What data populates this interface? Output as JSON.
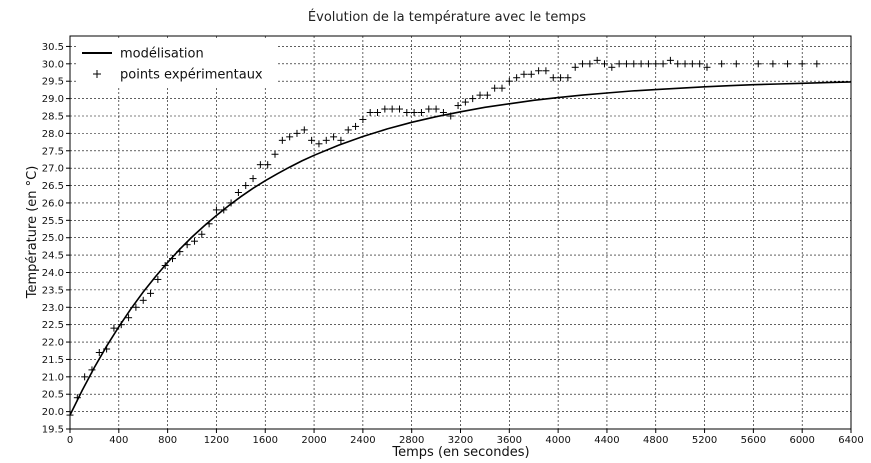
{
  "chart_data": {
    "type": "line",
    "title": "Évolution de la température avec le temps",
    "xlabel": "Temps (en secondes)",
    "ylabel": "Température (en °C)",
    "xlim": [
      0,
      6400
    ],
    "ylim": [
      19.5,
      30.8
    ],
    "xticks": [
      0,
      400,
      800,
      1200,
      1600,
      2000,
      2400,
      2800,
      3200,
      3600,
      4000,
      4400,
      4800,
      5200,
      5600,
      6000,
      6400
    ],
    "xtick_labels": [
      "0",
      "400",
      "800",
      "1200",
      "1600",
      "2000",
      "2400",
      "2800",
      "3200",
      "3600",
      "4000",
      "4400",
      "4800",
      "5200",
      "5600",
      "6000",
      "6400"
    ],
    "yticks": [
      19.5,
      20.0,
      20.5,
      21.0,
      21.5,
      22.0,
      22.5,
      23.0,
      23.5,
      24.0,
      24.5,
      25.0,
      25.5,
      26.0,
      26.5,
      27.0,
      27.5,
      28.0,
      28.5,
      29.0,
      29.5,
      30.0,
      30.5
    ],
    "ytick_labels": [
      "19.5",
      "20.0",
      "20.5",
      "21.0",
      "21.5",
      "22.0",
      "22.5",
      "23.0",
      "23.5",
      "24.0",
      "24.5",
      "25.0",
      "25.5",
      "26.0",
      "26.5",
      "27.0",
      "27.5",
      "28.0",
      "28.5",
      "29.0",
      "29.5",
      "30.0",
      "30.5"
    ],
    "grid": true,
    "grid_style": "dashed",
    "legend_position": "top-left",
    "series": [
      {
        "name": "modélisation",
        "kind": "line",
        "color": "#000000",
        "x": [
          0,
          100,
          200,
          300,
          400,
          500,
          600,
          700,
          800,
          900,
          1000,
          1100,
          1200,
          1300,
          1400,
          1500,
          1600,
          1700,
          1800,
          1900,
          2000,
          2200,
          2400,
          2600,
          2800,
          3000,
          3200,
          3400,
          3600,
          3800,
          4000,
          4200,
          4400,
          4600,
          4800,
          5000,
          5200,
          5400,
          5600,
          5800,
          6000,
          6200,
          6400
        ],
        "values": [
          19.9,
          20.61,
          21.27,
          21.88,
          22.44,
          22.96,
          23.44,
          23.88,
          24.29,
          24.67,
          25.02,
          25.34,
          25.64,
          25.92,
          26.18,
          26.42,
          26.64,
          26.84,
          27.03,
          27.21,
          27.37,
          27.66,
          27.91,
          28.13,
          28.32,
          28.48,
          28.62,
          28.75,
          28.85,
          28.95,
          29.03,
          29.1,
          29.16,
          29.22,
          29.26,
          29.3,
          29.34,
          29.37,
          29.4,
          29.42,
          29.44,
          29.46,
          29.48
        ]
      },
      {
        "name": "points expérimentaux",
        "kind": "scatter",
        "marker": "+",
        "color": "#000000",
        "x": [
          0,
          60,
          120,
          180,
          240,
          300,
          360,
          420,
          480,
          540,
          600,
          660,
          720,
          780,
          840,
          900,
          960,
          1020,
          1080,
          1140,
          1200,
          1260,
          1320,
          1380,
          1440,
          1500,
          1560,
          1620,
          1680,
          1740,
          1800,
          1860,
          1920,
          1980,
          2040,
          2100,
          2160,
          2220,
          2280,
          2340,
          2400,
          2460,
          2520,
          2580,
          2640,
          2700,
          2760,
          2820,
          2880,
          2940,
          3000,
          3060,
          3120,
          3180,
          3240,
          3300,
          3360,
          3420,
          3480,
          3540,
          3600,
          3660,
          3720,
          3780,
          3840,
          3900,
          3960,
          4020,
          4080,
          4140,
          4200,
          4260,
          4320,
          4380,
          4440,
          4500,
          4560,
          4620,
          4680,
          4740,
          4800,
          4860,
          4920,
          4980,
          5040,
          5100,
          5160,
          5220,
          5340,
          5460,
          5640,
          5760,
          5880,
          6000,
          6120
        ],
        "values": [
          19.9,
          20.4,
          21.0,
          21.2,
          21.7,
          21.8,
          22.4,
          22.5,
          22.7,
          23.0,
          23.2,
          23.4,
          23.8,
          24.2,
          24.4,
          24.6,
          24.8,
          24.9,
          25.1,
          25.4,
          25.8,
          25.8,
          26.0,
          26.3,
          26.5,
          26.7,
          27.1,
          27.1,
          27.4,
          27.8,
          27.9,
          28.0,
          28.1,
          27.8,
          27.7,
          27.8,
          27.9,
          27.8,
          28.1,
          28.2,
          28.4,
          28.6,
          28.6,
          28.7,
          28.7,
          28.7,
          28.6,
          28.6,
          28.6,
          28.7,
          28.7,
          28.6,
          28.5,
          28.8,
          28.9,
          29.0,
          29.1,
          29.1,
          29.3,
          29.3,
          29.5,
          29.6,
          29.7,
          29.7,
          29.8,
          29.8,
          29.6,
          29.6,
          29.6,
          29.9,
          30.0,
          30.0,
          30.1,
          30.0,
          29.9,
          30.0,
          30.0,
          30.0,
          30.0,
          30.0,
          30.0,
          30.0,
          30.1,
          30.0,
          30.0,
          30.0,
          30.0,
          29.9,
          30.0,
          30.0,
          30.0,
          30.0,
          30.0,
          30.0,
          30.0
        ]
      }
    ]
  }
}
